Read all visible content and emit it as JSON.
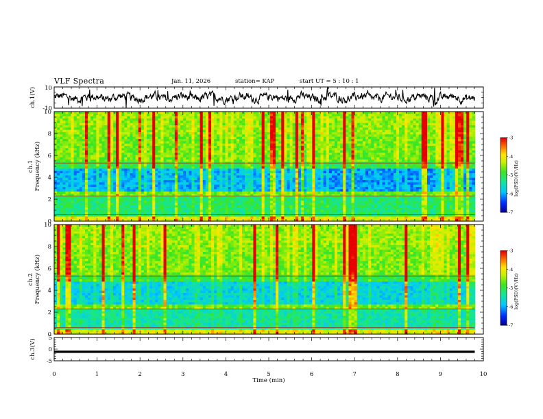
{
  "header": {
    "title": "VLF Spectra",
    "date": "Jan. 11, 2026",
    "station": "station= KAP",
    "start": "start UT =  5 : 10 : 1"
  },
  "chart_data": [
    {
      "type": "line",
      "name": "ch1-waveform",
      "ylabel": "ch.1(V)",
      "ylim": [
        -10,
        10
      ],
      "yticks": [
        "10",
        "-10"
      ],
      "xlim": [
        0,
        10
      ],
      "data_extent_min": 9.8,
      "series": [
        {
          "name": "ch.1",
          "description_range": [
            -5,
            5
          ],
          "mean": 0
        }
      ]
    },
    {
      "type": "heatmap",
      "name": "ch1-spectrogram",
      "ylabel": "ch.1\nFrequency (kHz)",
      "ylim": [
        0,
        10
      ],
      "yticks": [
        "0",
        "2",
        "4",
        "6",
        "8",
        "10"
      ],
      "xlim": [
        0,
        10
      ],
      "colorbar": {
        "label": "log(PSD)(V²/Hz)",
        "range": [
          -7,
          -3
        ],
        "ticks": [
          "-3",
          "-4",
          "-5",
          "-6",
          "-7"
        ]
      }
    },
    {
      "type": "heatmap",
      "name": "ch2-spectrogram",
      "ylabel": "ch.2\nFrequency (kHz)",
      "ylim": [
        0,
        10
      ],
      "yticks": [
        "0",
        "2",
        "4",
        "6",
        "8",
        "10"
      ],
      "xlim": [
        0,
        10
      ],
      "colorbar": {
        "label": "log(PSD)(V²/Hz)",
        "range": [
          -7,
          -3
        ],
        "ticks": [
          "-3",
          "-4",
          "-5",
          "-6",
          "-7"
        ]
      }
    },
    {
      "type": "line",
      "name": "ch3-waveform",
      "ylabel": "ch.3(V)",
      "ylim": [
        -5,
        5
      ],
      "yticks": [
        "5",
        "0",
        "-5"
      ],
      "xlim": [
        0,
        10
      ],
      "series": [
        {
          "name": "ch.3",
          "level": -1,
          "band": [
            -1.6,
            -0.6
          ]
        }
      ]
    }
  ],
  "xaxis": {
    "label": "Time (min)",
    "ticks": [
      "0",
      "1",
      "2",
      "3",
      "4",
      "5",
      "6",
      "7",
      "8",
      "9",
      "10"
    ]
  }
}
